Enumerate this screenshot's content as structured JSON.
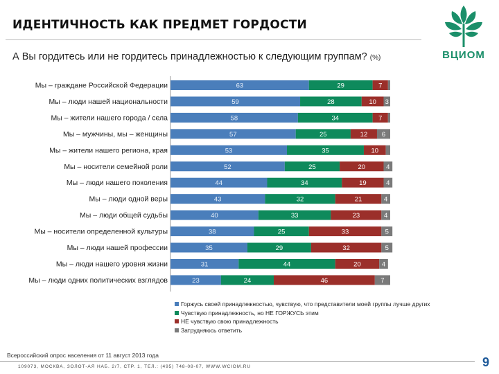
{
  "header": {
    "title": "ИДЕНТИЧНОСТЬ КАК ПРЕДМЕТ ГОРДОСТИ",
    "logo_text": "ВЦИОМ"
  },
  "question": {
    "text": "А Вы гордитесь или не гордитесь принадлежностью к следующим группам?",
    "unit": "(%)"
  },
  "colors": {
    "proud": "#4a7ebb",
    "belong": "#0e8a5c",
    "not_feel": "#9b2f2a",
    "unsure": "#7a7a7a",
    "logo": "#1b8f6a",
    "page_num": "#1e5a9a"
  },
  "chart_data": {
    "type": "bar",
    "orientation": "horizontal",
    "stacked": true,
    "categories": [
      "Мы – граждане Российской Федерации",
      "Мы – люди нашей национальности",
      "Мы – жители нашего города / села",
      "Мы – мужчины, мы – женщины",
      "Мы – жители нашего региона, края",
      "Мы – носители семейной роли",
      "Мы – люди нашего поколения",
      "Мы – люди одной веры",
      "Мы – люди общей судьбы",
      "Мы – носители определенной культуры",
      "Мы – люди нашей профессии",
      "Мы – люди нашего уровня жизни",
      "Мы – люди одних политических взглядов"
    ],
    "series": [
      {
        "name": "Горжусь своей принадлежностью, чувствую, что представители моей группы лучше других",
        "values": [
          63,
          59,
          58,
          57,
          53,
          52,
          44,
          43,
          40,
          38,
          35,
          31,
          23
        ]
      },
      {
        "name": "Чувствую принадлежность, но НЕ ГОРЖУСЬ этим",
        "values": [
          29,
          28,
          34,
          25,
          35,
          25,
          34,
          32,
          33,
          25,
          29,
          44,
          24
        ]
      },
      {
        "name": "НЕ чувствую свою принадлежность",
        "values": [
          7,
          10,
          7,
          12,
          10,
          20,
          19,
          21,
          23,
          33,
          32,
          20,
          46
        ]
      },
      {
        "name": "Затрудняюсь ответить",
        "values": [
          1,
          3,
          1,
          6,
          2,
          4,
          4,
          4,
          4,
          5,
          5,
          4,
          7
        ]
      }
    ],
    "value_labels": [
      [
        "63",
        "29",
        "7",
        ""
      ],
      [
        "59",
        "28",
        "10",
        "3"
      ],
      [
        "58",
        "34",
        "7",
        ""
      ],
      [
        "57",
        "25",
        "12",
        "6"
      ],
      [
        "53",
        "35",
        "10",
        ""
      ],
      [
        "52",
        "25",
        "20",
        "4"
      ],
      [
        "44",
        "34",
        "19",
        "4"
      ],
      [
        "43",
        "32",
        "21",
        "4"
      ],
      [
        "40",
        "33",
        "23",
        "4"
      ],
      [
        "38",
        "25",
        "33",
        "5"
      ],
      [
        "35",
        "29",
        "32",
        "5"
      ],
      [
        "31",
        "44",
        "20",
        "4"
      ],
      [
        "23",
        "24",
        "46",
        "7"
      ]
    ],
    "xlim": [
      0,
      100
    ]
  },
  "footer": {
    "survey_note": "Всероссийский опрос населения от 11 август 2013 года",
    "address": "109073, МОСКВА, ЗОЛОТ-АЯ НАБ. 2/7, СТР. 1, ТЕЛ.: (495) 748-08-07, WWW.WCIOM.RU",
    "page_number": "9"
  }
}
